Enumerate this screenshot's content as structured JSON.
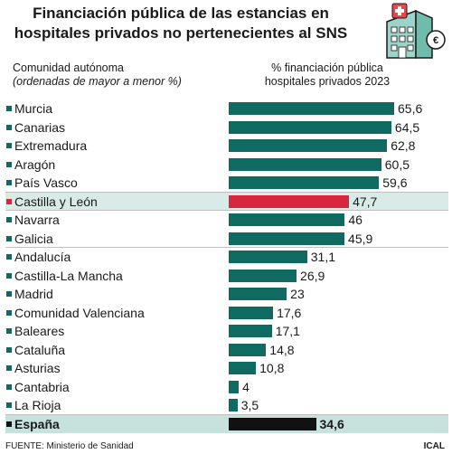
{
  "header": {
    "title_line1": "Financiación pública de las estancias en",
    "title_line2": "hospitales privados no pertenecientes al SNS",
    "left_label": "Comunidad autónoma",
    "left_sublabel": "(ordenadas de mayor a menor %)",
    "right_label_line1": "% financiación pública",
    "right_label_line2": "hospitales privados 2023"
  },
  "footer": {
    "source": "FUENTE: Ministerio de Sanidad",
    "credit": "ICAL"
  },
  "colors": {
    "bar": "#0f6b62",
    "highlight_bar": "#d7263d",
    "total_bar": "#111111",
    "highlight_bg": "#d9ebe7",
    "total_bg": "#c7e1dc"
  },
  "icon": "hospital-building-icon",
  "chart_data": {
    "type": "bar",
    "orientation": "horizontal",
    "categories": [
      "Murcia",
      "Canarias",
      "Extremadura",
      "Aragón",
      "País Vasco",
      "Castilla y León",
      "Navarra",
      "Galicia",
      "Andalucía",
      "Castilla-La Mancha",
      "Madrid",
      "Comunidad Valenciana",
      "Baleares",
      "Cataluña",
      "Asturias",
      "Cantabria",
      "La Rioja",
      "España"
    ],
    "values": [
      65.6,
      64.5,
      62.8,
      60.5,
      59.6,
      47.7,
      46,
      45.9,
      31.1,
      26.9,
      23,
      17.6,
      17.1,
      14.8,
      10.8,
      4,
      3.5,
      34.6
    ],
    "value_labels": [
      "65,6",
      "64,5",
      "62,8",
      "60,5",
      "59,6",
      "47,7",
      "46",
      "45,9",
      "31,1",
      "26,9",
      "23",
      "17,6",
      "17,1",
      "14,8",
      "10,8",
      "4",
      "3,5",
      "34,6"
    ],
    "highlighted": "Castilla y León",
    "total": "España",
    "xlim": [
      0,
      70
    ]
  }
}
